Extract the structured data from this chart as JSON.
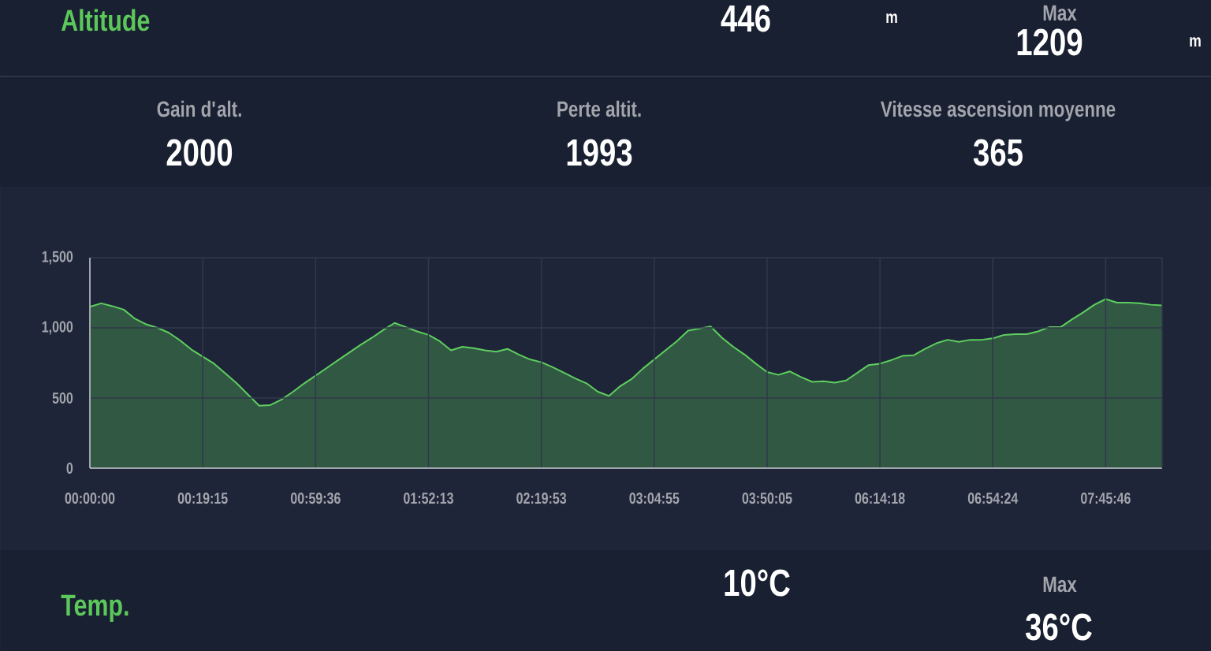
{
  "chart_data": [
    {
      "type": "other",
      "title": "Altitude",
      "annotations": [
        "446",
        "m",
        "Max",
        "1209",
        "m",
        "Gain d'alt.",
        "2000",
        "Perte altit.",
        "1993",
        "Vitesse ascension moyenne",
        "365"
      ]
    },
    {
      "type": "area",
      "color": "#5ecf5e",
      "grid": true,
      "ylim": [
        0,
        1500
      ],
      "yticks": [
        0,
        500,
        {
          "value": 1000,
          "label": "1,000"
        },
        {
          "value": 1500,
          "label": "1,500"
        }
      ],
      "categories": [
        "00:00:00",
        null,
        null,
        null,
        null,
        null,
        null,
        null,
        null,
        null,
        "00:19:15",
        null,
        null,
        null,
        null,
        null,
        null,
        null,
        null,
        null,
        "00:59:36",
        null,
        null,
        null,
        null,
        null,
        null,
        null,
        null,
        null,
        "01:52:13",
        null,
        null,
        null,
        null,
        null,
        null,
        null,
        null,
        null,
        "02:19:53",
        null,
        null,
        null,
        null,
        null,
        null,
        null,
        null,
        null,
        "03:04:55",
        null,
        null,
        null,
        null,
        null,
        null,
        null,
        null,
        null,
        "03:50:05",
        null,
        null,
        null,
        null,
        null,
        null,
        null,
        null,
        null,
        "06:14:18",
        null,
        null,
        null,
        null,
        null,
        null,
        null,
        null,
        null,
        "06:54:24",
        null,
        null,
        null,
        null,
        null,
        null,
        null,
        null,
        null,
        "07:45:46",
        null,
        null,
        null,
        null,
        null
      ],
      "values": [
        1150,
        1175,
        1155,
        1130,
        1065,
        1025,
        1000,
        965,
        910,
        845,
        795,
        745,
        675,
        605,
        525,
        445,
        450,
        490,
        545,
        605,
        660,
        715,
        770,
        825,
        880,
        930,
        985,
        1035,
        1005,
        975,
        950,
        905,
        840,
        865,
        855,
        840,
        830,
        850,
        810,
        775,
        755,
        720,
        680,
        640,
        605,
        545,
        515,
        585,
        635,
        710,
        775,
        840,
        905,
        980,
        995,
        1010,
        930,
        865,
        810,
        745,
        685,
        665,
        690,
        650,
        615,
        620,
        610,
        625,
        680,
        735,
        745,
        770,
        800,
        805,
        850,
        890,
        915,
        900,
        915,
        915,
        925,
        950,
        955,
        955,
        975,
        1005,
        1005,
        1060,
        1110,
        1165,
        1205,
        1180,
        1180,
        1175,
        1165,
        1160
      ]
    },
    {
      "type": "other",
      "title": "Temp.",
      "annotations": [
        "10°C",
        "Max",
        "36°C"
      ]
    }
  ]
}
